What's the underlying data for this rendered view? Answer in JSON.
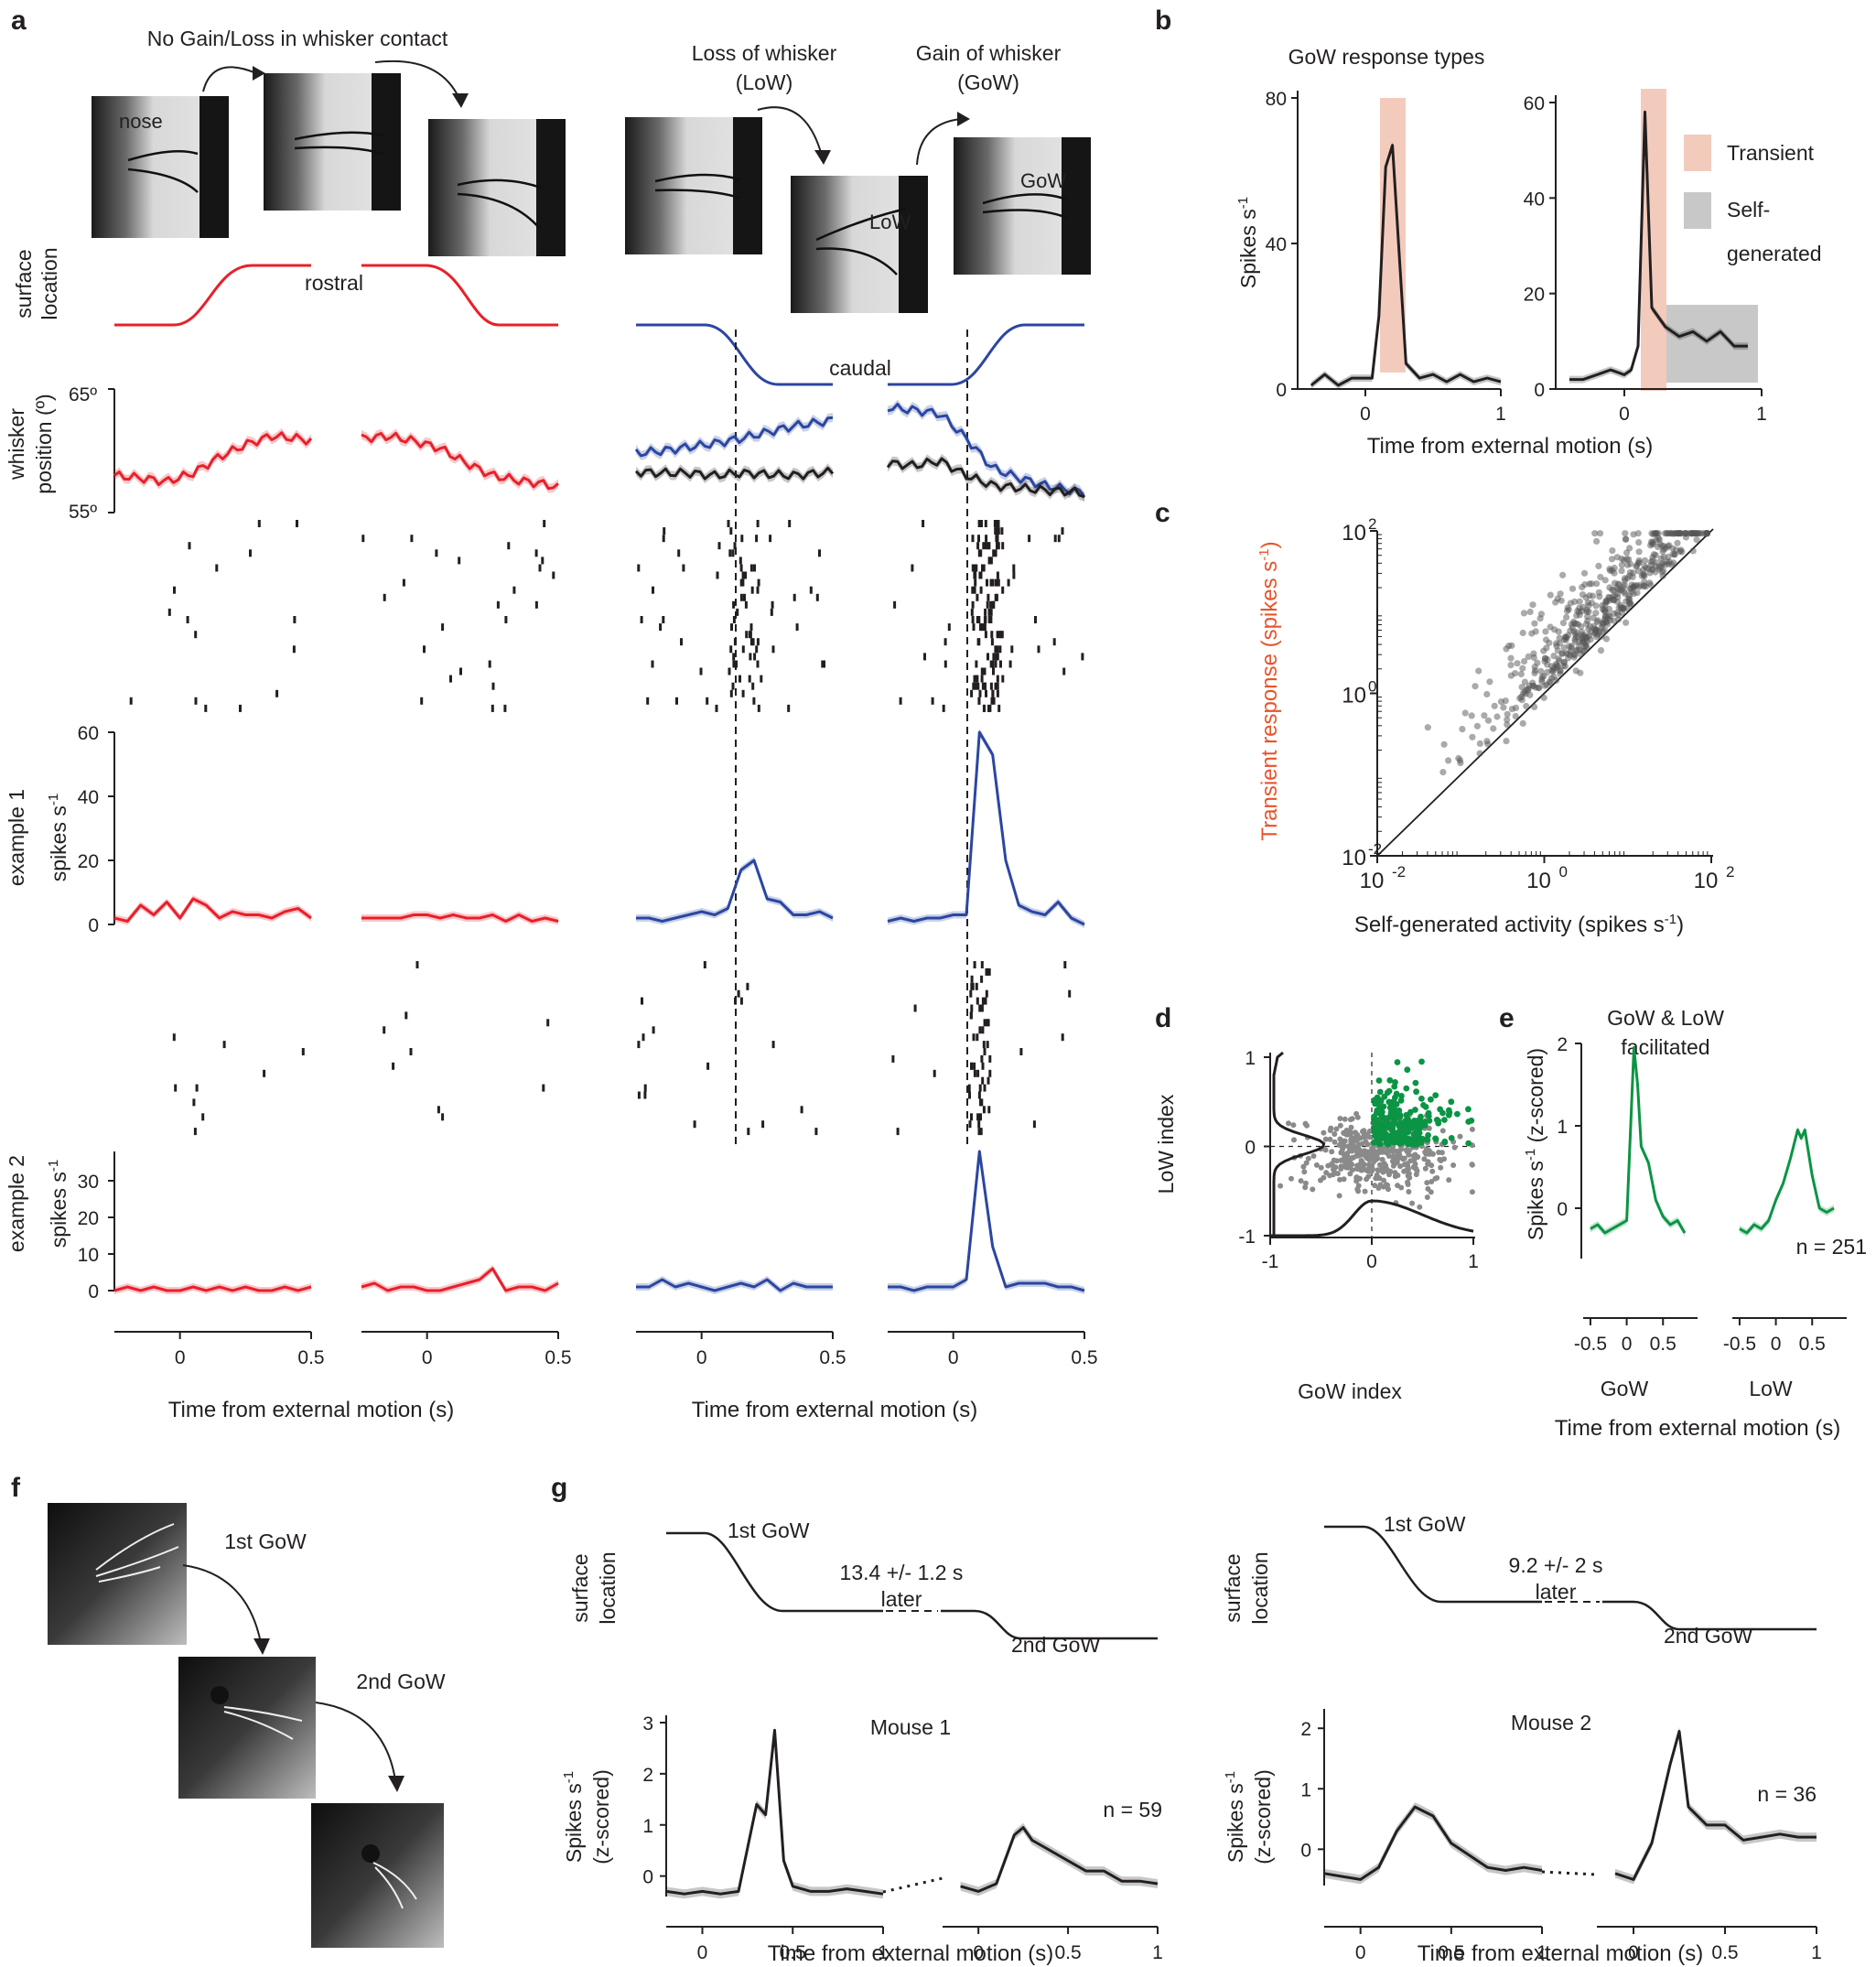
{
  "colors": {
    "red": "#e8202a",
    "blue": "#2b46a1",
    "green": "#0b9444",
    "black": "#231f20",
    "orange_label": "#e8532b",
    "transient_shade": "#f3cbbd",
    "selfgen_shade": "#c8c8c8",
    "photo_bg": "#dcdcdc",
    "photo_dark": "#1a1a1a"
  },
  "panel_letters": {
    "a": "a",
    "b": "b",
    "c": "c",
    "d": "d",
    "e": "e",
    "f": "f",
    "g": "g"
  },
  "a": {
    "header_nogain": "No Gain/Loss in whisker contact",
    "header_low": [
      "Loss of whisker",
      "(LoW)"
    ],
    "header_gow": [
      "Gain of whisker",
      "(GoW)"
    ],
    "photo_nose": "nose",
    "photo_low": "LoW",
    "photo_gow": "GoW",
    "surface_location": [
      "surface",
      "location"
    ],
    "rostral": "rostral",
    "caudal": "caudal",
    "whisker_position": [
      "whisker",
      "position (º)"
    ],
    "wp_tick_top": "65º",
    "wp_tick_bottom": "55º",
    "example1": "example 1",
    "example2": "example 2",
    "spikes_label": "spikes s",
    "spikes_sup": "-1",
    "ex1_ticks": [
      "60",
      "40",
      "20",
      "0"
    ],
    "ex2_ticks": [
      "30",
      "20",
      "10",
      "0"
    ],
    "x_ticks": [
      "0",
      "0.5"
    ],
    "xlabel": "Time from external motion (s)"
  },
  "b": {
    "title": "GoW response types",
    "ylabel": "Spikes s",
    "ylabel_sup": "-1",
    "left_yticks": [
      "80",
      "40",
      "0"
    ],
    "right_yticks": [
      "60",
      "40",
      "20",
      "0"
    ],
    "xticks": [
      "0",
      "1"
    ],
    "legend_transient": "Transient",
    "legend_self": [
      "Self-",
      "generated"
    ],
    "xlabel": "Time from external motion (s)"
  },
  "c": {
    "ylabel": "Transient response (spikes s",
    "ylabel_sup": "-1",
    "ylabel_end": ")",
    "xlabel": "Self-generated activity (spikes s",
    "xlabel_sup": "-1",
    "xlabel_end": ")",
    "tick_base": "10",
    "yticks_exp": [
      "2",
      "0",
      "-2"
    ],
    "xticks_exp": [
      "-2",
      "0",
      "2"
    ]
  },
  "d": {
    "ylabel": "LoW index",
    "xlabel": "GoW index",
    "yticks": [
      "1",
      "0",
      "-1"
    ],
    "xticks": [
      "-1",
      "0",
      "1"
    ]
  },
  "e": {
    "title": [
      "GoW & LoW",
      "facilitated"
    ],
    "ylabel": "Spikes s",
    "ylabel_sup": "-1",
    "ylabel_end": " (z-scored)",
    "yticks": [
      "2",
      "1",
      "0"
    ],
    "xticks": [
      "-0.5",
      "0",
      "0.5",
      "-0.5",
      "0",
      "0.5"
    ],
    "group_gow": "GoW",
    "group_low": "LoW",
    "n": "n = 251",
    "xlabel": "Time from external motion (s)"
  },
  "f": {
    "first": "1st GoW",
    "second": "2nd GoW"
  },
  "g": {
    "surface_location": [
      "surface",
      "location"
    ],
    "first": "1st GoW",
    "second": "2nd GoW",
    "later": "later",
    "mouse1_interval": "13.4 +/- 1.2 s",
    "mouse2_interval": "9.2 +/- 2 s",
    "mouse1": "Mouse 1",
    "mouse2": "Mouse 2",
    "n1": "n = 59",
    "n2": "n = 36",
    "ylabel": "Spikes s",
    "ylabel_sup": "-1",
    "ylabel2": "(z-scored)",
    "m1_yticks": [
      "3",
      "2",
      "1",
      "0"
    ],
    "m2_yticks": [
      "2",
      "1",
      "0"
    ],
    "xticks_a": [
      "0",
      "0.5",
      "1"
    ],
    "xticks_b": [
      "0",
      "0.5",
      "1"
    ],
    "xlabel": "Time from external motion (s)"
  },
  "chart_data": [
    {
      "type": "line",
      "panel": "a-whisker-position",
      "ylim": [
        55,
        65
      ],
      "series": [
        {
          "name": "",
          "x": [
            -0.25,
            -0.15,
            -0.05,
            0.05,
            0.15,
            0.25,
            0.35,
            0.45,
            0.5
          ],
          "values": [
            58.0,
            57.8,
            57.5,
            58.2,
            59.5,
            60.5,
            61.2,
            61.0,
            60.8
          ]
        },
        {
          "name": "",
          "x": [
            -0.25,
            -0.15,
            -0.05,
            0.05,
            0.15,
            0.25,
            0.35,
            0.45,
            0.5
          ],
          "values": [
            61.0,
            61.2,
            60.8,
            60.2,
            59.0,
            58.0,
            57.6,
            57.3,
            57.0
          ]
        },
        {
          "name": "",
          "x": [
            -0.25,
            -0.15,
            -0.05,
            0.05,
            0.15,
            0.25,
            0.35,
            0.45,
            0.5
          ],
          "values": [
            59.8,
            60.0,
            60.3,
            60.6,
            61.0,
            61.5,
            62.0,
            62.3,
            62.5
          ]
        },
        {
          "name": "",
          "x": [
            -0.25,
            -0.15,
            -0.05,
            0.05,
            0.15,
            0.25,
            0.35,
            0.45,
            0.5
          ],
          "values": [
            58.3,
            58.2,
            58.2,
            58.0,
            58.2,
            58.1,
            58.0,
            58.2,
            58.3
          ]
        },
        {
          "name": "",
          "x": [
            -0.25,
            -0.15,
            -0.05,
            0.05,
            0.15,
            0.25,
            0.35,
            0.45,
            0.5
          ],
          "values": [
            63.5,
            63.3,
            63.0,
            61.0,
            58.6,
            57.8,
            57.2,
            56.8,
            56.6
          ]
        },
        {
          "name": "",
          "x": [
            -0.25,
            -0.15,
            -0.05,
            0.05,
            0.15,
            0.25,
            0.35,
            0.45,
            0.5
          ],
          "values": [
            59.0,
            58.8,
            59.2,
            58.0,
            57.2,
            57.0,
            56.8,
            56.7,
            56.5
          ]
        }
      ]
    },
    {
      "type": "line",
      "panel": "a-example1",
      "ylim": [
        0,
        60
      ],
      "series": [
        {
          "name": "",
          "x": [
            -0.25,
            -0.2,
            -0.15,
            -0.1,
            -0.05,
            0,
            0.05,
            0.1,
            0.15,
            0.2,
            0.25,
            0.3,
            0.35,
            0.4,
            0.45,
            0.5
          ],
          "values": [
            2,
            1,
            6,
            3,
            7,
            2,
            8,
            6,
            2,
            4,
            3,
            3,
            2,
            4,
            5,
            2
          ]
        },
        {
          "name": "",
          "x": [
            -0.25,
            -0.2,
            -0.15,
            -0.1,
            -0.05,
            0,
            0.05,
            0.1,
            0.15,
            0.2,
            0.25,
            0.3,
            0.35,
            0.4,
            0.45,
            0.5
          ],
          "values": [
            2,
            2,
            2,
            2,
            3,
            3,
            2,
            3,
            2,
            2,
            3,
            1,
            3,
            1,
            2,
            1
          ]
        },
        {
          "name": "",
          "x": [
            -0.25,
            -0.2,
            -0.15,
            -0.1,
            -0.05,
            0,
            0.05,
            0.1,
            0.15,
            0.2,
            0.25,
            0.3,
            0.35,
            0.4,
            0.45,
            0.5
          ],
          "values": [
            2,
            2,
            1,
            2,
            3,
            4,
            3,
            5,
            17,
            20,
            8,
            7,
            3,
            3,
            4,
            2
          ]
        },
        {
          "name": "",
          "x": [
            -0.25,
            -0.2,
            -0.15,
            -0.1,
            -0.05,
            0,
            0.05,
            0.1,
            0.15,
            0.2,
            0.25,
            0.3,
            0.35,
            0.4,
            0.45,
            0.5
          ],
          "values": [
            1,
            2,
            1,
            2,
            2,
            3,
            3,
            60,
            53,
            20,
            6,
            4,
            3,
            7,
            2,
            0
          ]
        }
      ]
    },
    {
      "type": "line",
      "panel": "a-example2",
      "ylim": [
        0,
        38
      ],
      "series": [
        {
          "name": "",
          "x": [
            -0.25,
            -0.2,
            -0.15,
            -0.1,
            -0.05,
            0,
            0.05,
            0.1,
            0.15,
            0.2,
            0.25,
            0.3,
            0.35,
            0.4,
            0.45,
            0.5
          ],
          "values": [
            0,
            1,
            0,
            1,
            0,
            0,
            1,
            0,
            1,
            0,
            1,
            0,
            0,
            1,
            0,
            1
          ]
        },
        {
          "name": "",
          "x": [
            -0.25,
            -0.2,
            -0.15,
            -0.1,
            -0.05,
            0,
            0.05,
            0.1,
            0.15,
            0.2,
            0.25,
            0.3,
            0.35,
            0.4,
            0.45,
            0.5
          ],
          "values": [
            1,
            2,
            0,
            1,
            1,
            0,
            0,
            1,
            2,
            3,
            6,
            0,
            1,
            1,
            0,
            2
          ]
        },
        {
          "name": "",
          "x": [
            -0.25,
            -0.2,
            -0.15,
            -0.1,
            -0.05,
            0,
            0.05,
            0.1,
            0.15,
            0.2,
            0.25,
            0.3,
            0.35,
            0.4,
            0.45,
            0.5
          ],
          "values": [
            1,
            1,
            3,
            1,
            2,
            1,
            0,
            1,
            2,
            1,
            3,
            0,
            2,
            1,
            1,
            1
          ]
        },
        {
          "name": "",
          "x": [
            -0.25,
            -0.2,
            -0.15,
            -0.1,
            -0.05,
            0,
            0.05,
            0.1,
            0.15,
            0.2,
            0.25,
            0.3,
            0.35,
            0.4,
            0.45,
            0.5
          ],
          "values": [
            1,
            1,
            0,
            1,
            1,
            1,
            3,
            38,
            12,
            1,
            2,
            2,
            2,
            1,
            1,
            0
          ]
        }
      ]
    },
    {
      "type": "line",
      "panel": "b-left",
      "ylim": [
        0,
        80
      ],
      "series": [
        {
          "name": "",
          "x": [
            -0.4,
            -0.3,
            -0.2,
            -0.1,
            0,
            0.05,
            0.1,
            0.15,
            0.2,
            0.3,
            0.4,
            0.5,
            0.6,
            0.7,
            0.8,
            0.9,
            1.0
          ],
          "values": [
            1,
            4,
            1,
            3,
            3,
            3,
            20,
            61,
            67,
            7,
            3,
            4,
            2,
            4,
            2,
            3,
            2
          ]
        }
      ]
    },
    {
      "type": "line",
      "panel": "b-right",
      "ylim": [
        0,
        60
      ],
      "series": [
        {
          "name": "",
          "x": [
            -0.4,
            -0.3,
            -0.2,
            -0.1,
            0,
            0.05,
            0.1,
            0.15,
            0.2,
            0.3,
            0.4,
            0.5,
            0.6,
            0.7,
            0.8,
            0.9
          ],
          "values": [
            2,
            2,
            3,
            4,
            3,
            4,
            9,
            58,
            17,
            13,
            11,
            12,
            10,
            12,
            9,
            9
          ]
        }
      ]
    },
    {
      "type": "scatter",
      "panel": "c",
      "xlabel": "Self-generated activity (spikes s-1)",
      "ylabel": "Transient response (spikes s-1)",
      "log": true,
      "xlim": [
        -2,
        2
      ],
      "ylim": [
        -2,
        2
      ],
      "points": "~500 neurons, mostly above identity line"
    },
    {
      "type": "scatter",
      "panel": "d",
      "xlim": [
        -1,
        1
      ],
      "ylim": [
        -1,
        1
      ],
      "note": "green = GoW & LoW facilitated"
    },
    {
      "type": "line",
      "panel": "e",
      "ylim": [
        -0.4,
        2
      ],
      "series": [
        {
          "name": "GoW",
          "x": [
            -0.5,
            -0.4,
            -0.3,
            -0.2,
            -0.1,
            0,
            0.1,
            0.15,
            0.2,
            0.3,
            0.4,
            0.5,
            0.6,
            0.7,
            0.8
          ],
          "values": [
            -0.25,
            -0.2,
            -0.3,
            -0.25,
            -0.2,
            -0.15,
            1.95,
            1.5,
            0.75,
            0.55,
            0.1,
            -0.1,
            -0.2,
            -0.15,
            -0.3
          ]
        },
        {
          "name": "LoW",
          "x": [
            -0.5,
            -0.4,
            -0.3,
            -0.2,
            -0.1,
            0,
            0.1,
            0.2,
            0.3,
            0.35,
            0.4,
            0.5,
            0.6,
            0.7,
            0.8
          ],
          "values": [
            -0.25,
            -0.3,
            -0.2,
            -0.25,
            -0.15,
            0.1,
            0.3,
            0.6,
            0.95,
            0.85,
            0.95,
            0.4,
            0.0,
            -0.05,
            0.0
          ]
        }
      ]
    },
    {
      "type": "line",
      "panel": "g-mouse1",
      "ylim": [
        -0.4,
        3
      ],
      "series": [
        {
          "name": "1st GoW",
          "x": [
            -0.2,
            -0.1,
            0,
            0.1,
            0.2,
            0.3,
            0.35,
            0.4,
            0.45,
            0.5,
            0.6,
            0.7,
            0.8,
            0.9,
            1.0
          ],
          "values": [
            -0.3,
            -0.35,
            -0.3,
            -0.35,
            -0.3,
            1.4,
            1.2,
            2.85,
            0.3,
            -0.2,
            -0.3,
            -0.3,
            -0.25,
            -0.3,
            -0.35
          ]
        },
        {
          "name": "2nd GoW",
          "x": [
            -0.1,
            0,
            0.1,
            0.2,
            0.25,
            0.3,
            0.4,
            0.5,
            0.6,
            0.7,
            0.8,
            0.9,
            1.0
          ],
          "values": [
            -0.2,
            -0.3,
            -0.15,
            0.8,
            0.95,
            0.7,
            0.5,
            0.3,
            0.1,
            0.1,
            -0.1,
            -0.1,
            -0.15
          ]
        }
      ]
    },
    {
      "type": "line",
      "panel": "g-mouse2",
      "ylim": [
        -0.6,
        2.2
      ],
      "series": [
        {
          "name": "1st GoW",
          "x": [
            -0.2,
            -0.1,
            0,
            0.1,
            0.2,
            0.3,
            0.4,
            0.5,
            0.6,
            0.7,
            0.8,
            0.9,
            1.0
          ],
          "values": [
            -0.4,
            -0.45,
            -0.5,
            -0.3,
            0.3,
            0.7,
            0.55,
            0.1,
            -0.1,
            -0.3,
            -0.35,
            -0.3,
            -0.35
          ]
        },
        {
          "name": "2nd GoW",
          "x": [
            -0.1,
            0,
            0.1,
            0.2,
            0.25,
            0.3,
            0.4,
            0.5,
            0.6,
            0.7,
            0.8,
            0.9,
            1.0
          ],
          "values": [
            -0.4,
            -0.5,
            0.1,
            1.4,
            1.95,
            0.7,
            0.4,
            0.4,
            0.15,
            0.2,
            0.25,
            0.2,
            0.2
          ]
        }
      ]
    }
  ]
}
